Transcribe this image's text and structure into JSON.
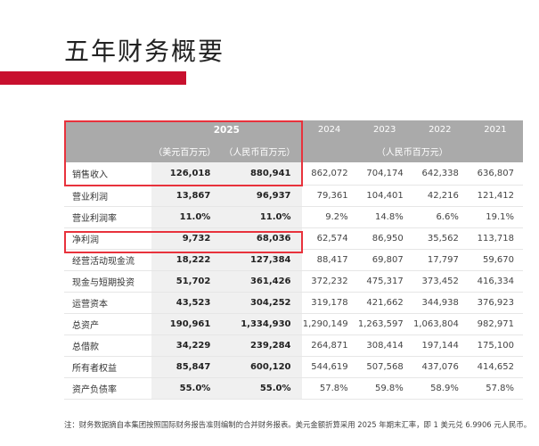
{
  "page": {
    "title": "五年财务概要",
    "footnote": "注：财务数据摘自本集团按照国际财务报告准则编制的合并财务报表。美元金额折算采用 2025 年期末汇率，即 1 美元兑 6.9906 元人民币。"
  },
  "table": {
    "header": {
      "year_2025": "2025",
      "years": [
        "2024",
        "2023",
        "2022",
        "2021"
      ],
      "unit_usd": "（美元百万元）",
      "unit_cny": "（人民币百万元）",
      "unit_history": "（人民币百万元）"
    },
    "rows": [
      {
        "label": "销售收入",
        "usd_2025": "126,018",
        "cny_2025": "880,941",
        "history": [
          "862,072",
          "704,174",
          "642,338",
          "636,807"
        ]
      },
      {
        "label": "营业利润",
        "usd_2025": "13,867",
        "cny_2025": "96,937",
        "history": [
          "79,361",
          "104,401",
          "42,216",
          "121,412"
        ]
      },
      {
        "label": "营业利润率",
        "usd_2025": "11.0%",
        "cny_2025": "11.0%",
        "history": [
          "9.2%",
          "14.8%",
          "6.6%",
          "19.1%"
        ]
      },
      {
        "label": "净利润",
        "usd_2025": "9,732",
        "cny_2025": "68,036",
        "history": [
          "62,574",
          "86,950",
          "35,562",
          "113,718"
        ]
      },
      {
        "label": "经营活动现金流",
        "usd_2025": "18,222",
        "cny_2025": "127,384",
        "history": [
          "88,417",
          "69,807",
          "17,797",
          "59,670"
        ]
      },
      {
        "label": "现金与短期投资",
        "usd_2025": "51,702",
        "cny_2025": "361,426",
        "history": [
          "372,232",
          "475,317",
          "373,452",
          "416,334"
        ]
      },
      {
        "label": "运营资本",
        "usd_2025": "43,523",
        "cny_2025": "304,252",
        "history": [
          "319,178",
          "421,662",
          "344,938",
          "376,923"
        ]
      },
      {
        "label": "总资产",
        "usd_2025": "190,961",
        "cny_2025": "1,334,930",
        "history": [
          "1,290,149",
          "1,263,597",
          "1,063,804",
          "982,971"
        ]
      },
      {
        "label": "总借款",
        "usd_2025": "34,229",
        "cny_2025": "239,284",
        "history": [
          "264,871",
          "308,414",
          "197,144",
          "175,100"
        ]
      },
      {
        "label": "所有者权益",
        "usd_2025": "85,847",
        "cny_2025": "600,120",
        "history": [
          "544,619",
          "507,568",
          "437,076",
          "414,652"
        ]
      },
      {
        "label": "资产负债率",
        "usd_2025": "55.0%",
        "cny_2025": "55.0%",
        "history": [
          "57.8%",
          "59.8%",
          "58.9%",
          "57.8%"
        ]
      }
    ]
  },
  "colors": {
    "accent_red": "#c8102e",
    "highlight_border": "#e8323c",
    "header_gray": "#aaaaaa",
    "col2025_bg": "#f0f0f0"
  }
}
